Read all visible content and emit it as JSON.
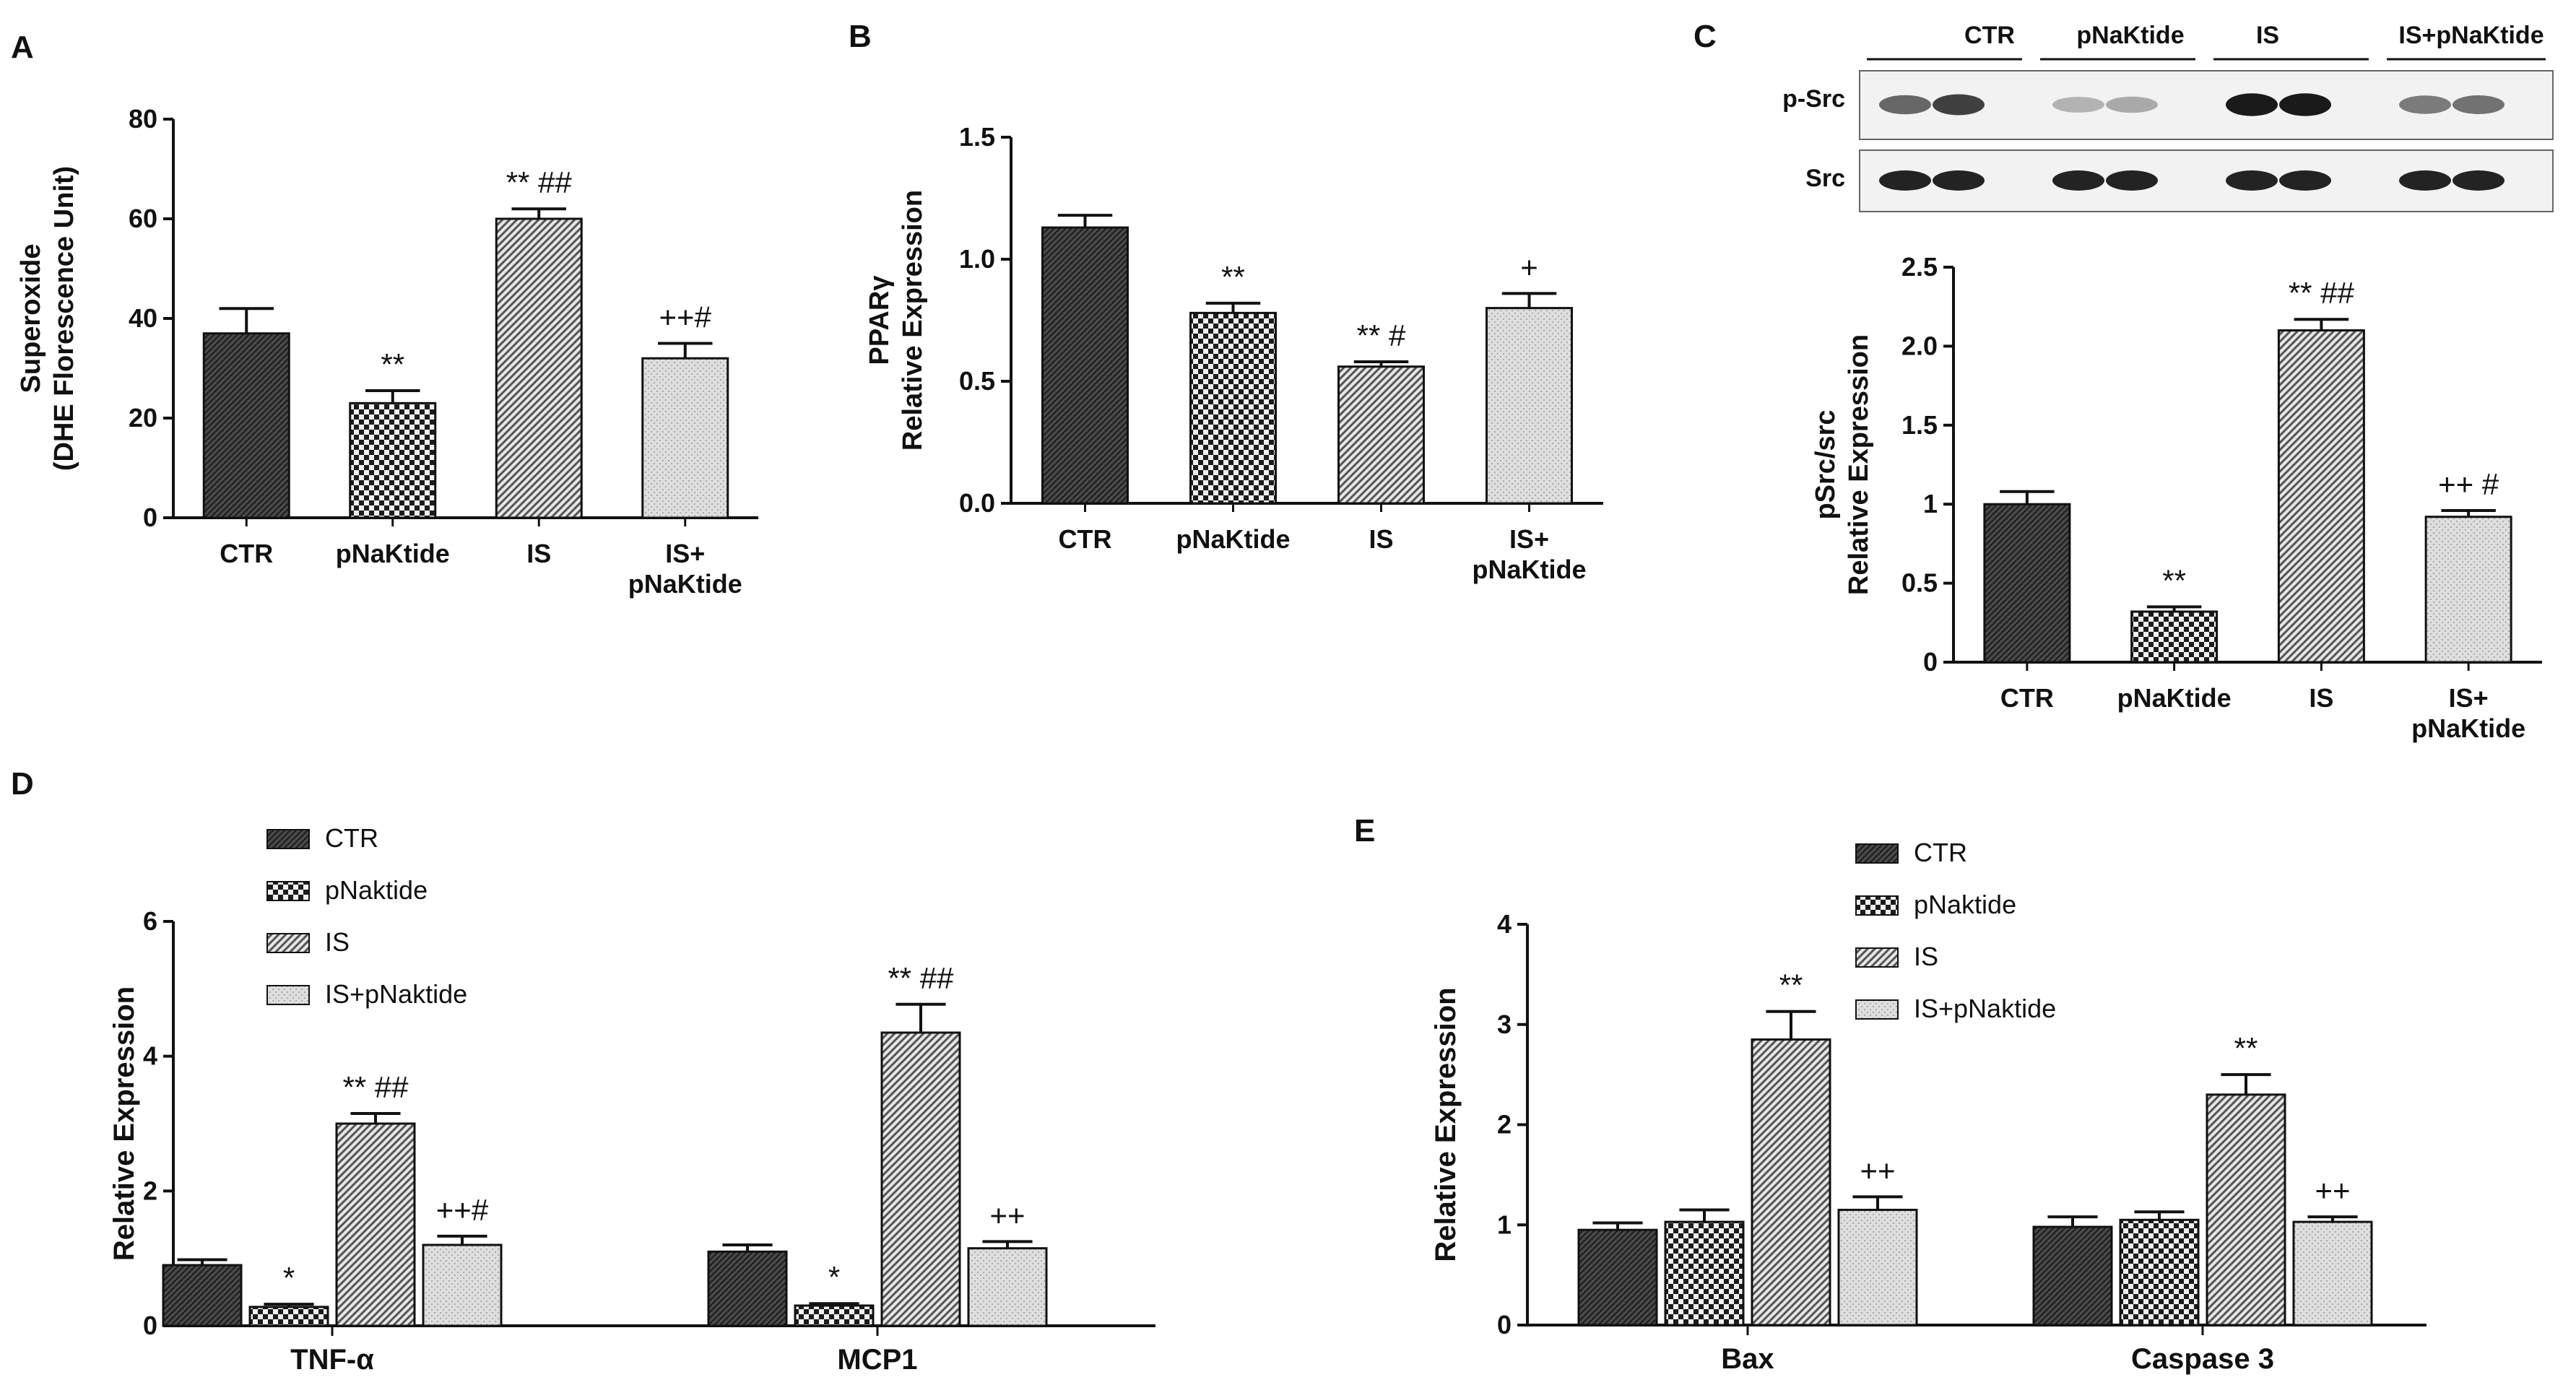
{
  "panels": [
    {
      "id": "A",
      "letter": "A"
    },
    {
      "id": "B",
      "letter": "B"
    },
    {
      "id": "C",
      "letter": "C"
    },
    {
      "id": "D",
      "letter": "D"
    },
    {
      "id": "E",
      "letter": "E"
    }
  ],
  "colors": {
    "ink": "#111111",
    "bar_dark": "#3a3a3a",
    "bar_check": "#2a2a2a",
    "bar_hatch": "#9a9a9a",
    "bar_light": "#d8d8d8",
    "blot_bg": "#f4f4f4"
  },
  "blot": {
    "group_labels": [
      "CTR",
      "pNaKtide",
      "IS",
      "IS+pNaKtide"
    ],
    "rows": [
      {
        "label": "p-Src",
        "intensities": [
          0.55,
          0.75,
          0.15,
          0.2,
          0.95,
          0.95,
          0.45,
          0.5
        ]
      },
      {
        "label": "Src",
        "intensities": [
          0.9,
          0.9,
          0.9,
          0.9,
          0.9,
          0.9,
          0.9,
          0.9
        ]
      }
    ]
  },
  "chart_data": [
    {
      "panel": "A",
      "type": "bar",
      "categories": [
        "CTR",
        "pNaKtide",
        "IS",
        "IS+\npNaKtide"
      ],
      "values": [
        37,
        23,
        60,
        32
      ],
      "errors": [
        5,
        2.5,
        2,
        3
      ],
      "annotations": [
        "",
        "**",
        "**  ##",
        "++#"
      ],
      "ylabel": "Superoxide\n(DHE Florescence Unit)",
      "ylim": [
        0,
        80
      ],
      "yticks": [
        0,
        20,
        40,
        60,
        80
      ],
      "ytick_labels": [
        "0",
        "20",
        "40",
        "60",
        "80"
      ]
    },
    {
      "panel": "B",
      "type": "bar",
      "categories": [
        "CTR",
        "pNaKtide",
        "IS",
        "IS+\npNaKtide"
      ],
      "values": [
        1.13,
        0.78,
        0.56,
        0.8
      ],
      "errors": [
        0.05,
        0.04,
        0.02,
        0.06
      ],
      "annotations": [
        "",
        "**",
        "** #",
        "+"
      ],
      "ylabel": "PPARγ\nRelative Expression",
      "ylim": [
        0,
        1.5
      ],
      "yticks": [
        0,
        0.5,
        1,
        1.5
      ],
      "ytick_labels": [
        "0.0",
        "0.5",
        "1.0",
        "1.5"
      ]
    },
    {
      "panel": "C",
      "type": "bar",
      "categories": [
        "CTR",
        "pNaKtide",
        "IS",
        "IS+\npNaKtide"
      ],
      "values": [
        1.0,
        0.32,
        2.1,
        0.92
      ],
      "errors": [
        0.08,
        0.03,
        0.07,
        0.04
      ],
      "annotations": [
        "",
        "**",
        "**  ##",
        "++ #"
      ],
      "ylabel": "pSrc/src\nRelative Expression",
      "ylim": [
        0,
        2.5
      ],
      "yticks": [
        0,
        0.5,
        1,
        1.5,
        2,
        2.5
      ],
      "ytick_labels": [
        "0",
        "0.5",
        "1",
        "1.5",
        "2.0",
        "2.5"
      ]
    },
    {
      "panel": "D",
      "type": "bar",
      "categories": [
        "TNF-α",
        "MCP1"
      ],
      "series": [
        {
          "name": "CTR",
          "values": [
            0.9,
            1.1
          ],
          "errors": [
            0.08,
            0.1
          ],
          "annotations": [
            "",
            ""
          ]
        },
        {
          "name": "pNaktide",
          "values": [
            0.28,
            0.3
          ],
          "errors": [
            0.04,
            0.03
          ],
          "annotations": [
            "*",
            "*"
          ]
        },
        {
          "name": "IS",
          "values": [
            3.0,
            4.35
          ],
          "errors": [
            0.15,
            0.42
          ],
          "annotations": [
            "**  ##",
            "**  ##"
          ]
        },
        {
          "name": "IS+pNaktide",
          "values": [
            1.2,
            1.15
          ],
          "errors": [
            0.13,
            0.1
          ],
          "annotations": [
            "++#",
            "++"
          ]
        }
      ],
      "ylabel": "Relative Expression",
      "ylim": [
        0,
        6
      ],
      "yticks": [
        0,
        2,
        4,
        6
      ],
      "ytick_labels": [
        "0",
        "2",
        "4",
        "6"
      ],
      "legend": "top-left"
    },
    {
      "panel": "E",
      "type": "bar",
      "categories": [
        "Bax",
        "Caspase 3"
      ],
      "series": [
        {
          "name": "CTR",
          "values": [
            0.95,
            0.98
          ],
          "errors": [
            0.07,
            0.1
          ],
          "annotations": [
            "",
            ""
          ]
        },
        {
          "name": "pNaktide",
          "values": [
            1.03,
            1.05
          ],
          "errors": [
            0.12,
            0.08
          ],
          "annotations": [
            "",
            ""
          ]
        },
        {
          "name": "IS",
          "values": [
            2.85,
            2.3
          ],
          "errors": [
            0.28,
            0.2
          ],
          "annotations": [
            "**",
            "**"
          ]
        },
        {
          "name": "IS+pNaktide",
          "values": [
            1.15,
            1.03
          ],
          "errors": [
            0.13,
            0.05
          ],
          "annotations": [
            "++",
            "++"
          ]
        }
      ],
      "ylabel": "Relative Expression",
      "ylim": [
        0,
        4
      ],
      "yticks": [
        0,
        1,
        2,
        3,
        4
      ],
      "ytick_labels": [
        "0",
        "1",
        "2",
        "3",
        "4"
      ],
      "legend": "top-left"
    }
  ]
}
